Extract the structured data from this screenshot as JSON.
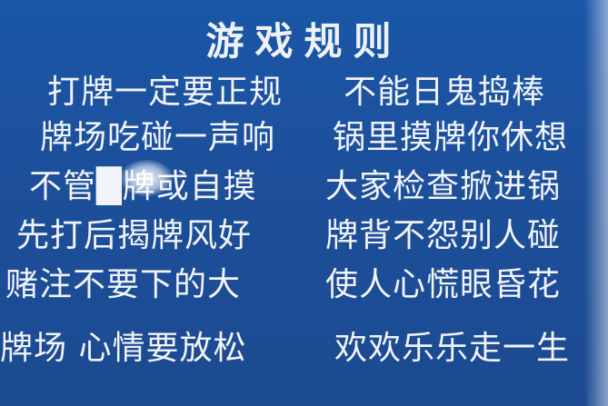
{
  "sign": {
    "title": "游戏规则",
    "rows": [
      {
        "left": "打牌一定要正规",
        "right": "不能日鬼捣棒"
      },
      {
        "left": "牌场吃碰一声响",
        "right": "锅里摸牌你休想"
      },
      {
        "left": "不管█牌或自摸",
        "right": "大家检查掀进锅"
      },
      {
        "left": "先打后揭牌风好",
        "right": "牌背不怨别人碰"
      },
      {
        "left": "赌注不要下的大",
        "right": "使人心慌眼昏花"
      },
      {
        "left": "牌场 心情要放松",
        "right": "欢欢乐乐走一生"
      }
    ]
  },
  "colors": {
    "background": "#1d4f9a",
    "text": "#f1f3f8"
  }
}
